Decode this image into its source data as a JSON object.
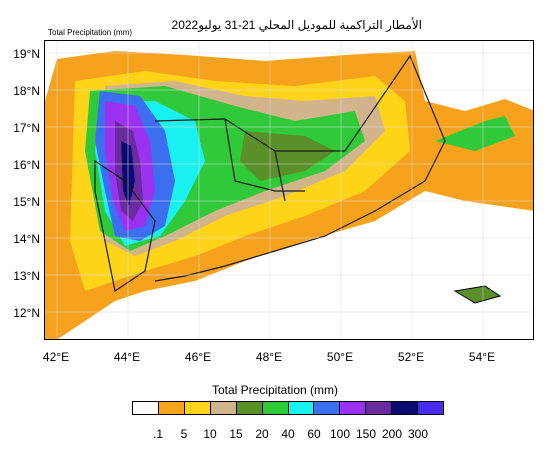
{
  "header": {
    "top_left_label": "Total Precipitation  (mm)",
    "title": "الأمطار التراكمية للموديل المحلي 21-31 يوليو2022"
  },
  "axes": {
    "lat_labels": [
      "19°N",
      "18°N",
      "17°N",
      "16°N",
      "15°N",
      "14°N",
      "13°N",
      "12°N"
    ],
    "lon_labels": [
      "42°E",
      "44°E",
      "46°E",
      "48°E",
      "50°E",
      "52°E",
      "54°E"
    ]
  },
  "legend": {
    "title": "Total Precipitation  (mm)",
    "labels": [
      ".1",
      "5",
      "10",
      "15",
      "20",
      "40",
      "60",
      "100",
      "150",
      "200",
      "300"
    ],
    "colors": [
      "#ffffff",
      "#f6a21d",
      "#fdd417",
      "#d2b48c",
      "#5a8f2a",
      "#30c93a",
      "#19f0f0",
      "#3c6ef0",
      "#9a32f0",
      "#6a2aa0",
      "#0a0a70",
      "#4a2cf0"
    ]
  }
}
